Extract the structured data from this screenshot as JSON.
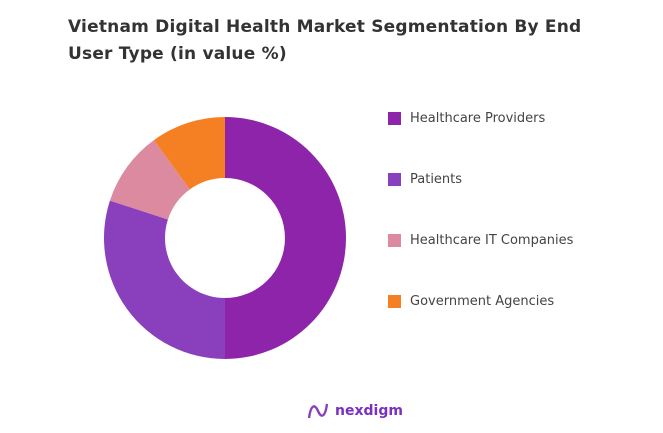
{
  "chart_data": {
    "type": "pie",
    "title": "Vietnam Digital Health Market Segmentation By End User Type (in value %)",
    "categories": [
      "Healthcare Providers",
      "Patients",
      "Healthcare IT Companies",
      "Government Agencies"
    ],
    "values": [
      50,
      30,
      10,
      10
    ],
    "colors": [
      "#8e24aa",
      "#8a3fbd",
      "#db8aa0",
      "#f58024"
    ],
    "donut": true,
    "legend": "right"
  },
  "brand": {
    "name": "nexdigm"
  }
}
